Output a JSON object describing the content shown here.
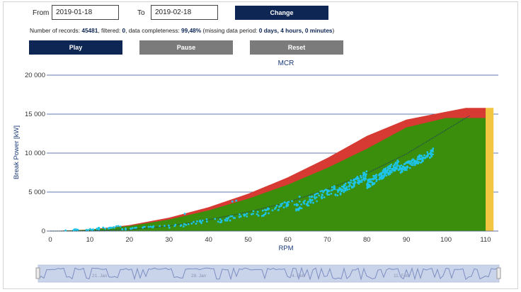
{
  "filter": {
    "from_label": "From",
    "from_value": "2019-01-18",
    "to_label": "To",
    "to_value": "2019-02-18",
    "change_label": "Change"
  },
  "info": {
    "prefix": "Number of records: ",
    "records": "45481",
    "filtered_label": ", filtered: ",
    "filtered": "0",
    "completeness_label": ", data completeness: ",
    "completeness": "99,48%",
    "missing_label": " (missing data period: ",
    "missing": "0 days, 4 hours, 0 minutes",
    "suffix": ")"
  },
  "controls": {
    "play_label": "Play",
    "pause_label": "Pause",
    "reset_label": "Reset"
  },
  "colors": {
    "button_dark": "#0d2653",
    "button_grey": "#7b7b7b",
    "operating_zone": "#3a8e0b",
    "overload_zone": "#d63a32",
    "overspeed_zone": "#f2c640",
    "scatter": "#1ec3e8",
    "gridline": "#2f4f91"
  },
  "navigator": {
    "labels": [
      "21. Jan",
      "28. Jan",
      "4. Feb",
      "11. Feb"
    ]
  },
  "chart_data": {
    "type": "scatter",
    "title": "MCR",
    "xlabel": "RPM",
    "ylabel": "Break Power [kW]",
    "xlim": [
      0,
      112
    ],
    "ylim": [
      0,
      20000
    ],
    "x_ticks": [
      0,
      10,
      20,
      30,
      40,
      50,
      60,
      70,
      80,
      90,
      100,
      110
    ],
    "y_ticks": [
      0,
      5000,
      10000,
      15000,
      20000
    ],
    "y_tick_labels": [
      "0",
      "5 000",
      "10 000",
      "15 000",
      "20 000"
    ],
    "grid": "horizontal",
    "zones": {
      "operating_limit": [
        [
          0,
          0
        ],
        [
          10,
          160
        ],
        [
          20,
          650
        ],
        [
          30,
          1480
        ],
        [
          40,
          2650
        ],
        [
          50,
          4150
        ],
        [
          60,
          5950
        ],
        [
          70,
          8100
        ],
        [
          80,
          10550
        ],
        [
          90,
          13300
        ],
        [
          100,
          14500
        ],
        [
          110,
          14500
        ]
      ],
      "overload_limit": [
        [
          0,
          0
        ],
        [
          10,
          190
        ],
        [
          20,
          760
        ],
        [
          30,
          1720
        ],
        [
          40,
          3050
        ],
        [
          50,
          4780
        ],
        [
          60,
          6880
        ],
        [
          70,
          9370
        ],
        [
          80,
          12200
        ],
        [
          90,
          14300
        ],
        [
          105,
          15800
        ],
        [
          110,
          15800
        ]
      ],
      "overspeed_band": [
        110,
        112
      ]
    },
    "propeller_curve": [
      [
        0,
        0
      ],
      [
        10,
        20
      ],
      [
        20,
        180
      ],
      [
        30,
        650
      ],
      [
        40,
        1450
      ],
      [
        50,
        2450
      ],
      [
        60,
        3700
      ],
      [
        70,
        5350
      ],
      [
        80,
        7400
      ],
      [
        90,
        9900
      ],
      [
        106,
        14800
      ]
    ],
    "scatter_clusters": [
      {
        "x": [
          3,
          8
        ],
        "y": [
          0,
          250
        ],
        "n": 8
      },
      {
        "x": [
          8,
          18
        ],
        "y": [
          100,
          600
        ],
        "n": 28
      },
      {
        "x": [
          18,
          30
        ],
        "y": [
          200,
          700
        ],
        "n": 20
      },
      {
        "x": [
          30,
          42
        ],
        "y": [
          500,
          1500
        ],
        "n": 22
      },
      {
        "x": [
          42,
          52
        ],
        "y": [
          1200,
          2400
        ],
        "n": 30
      },
      {
        "x": [
          52,
          62
        ],
        "y": [
          2000,
          3800
        ],
        "n": 40
      },
      {
        "x": [
          62,
          72
        ],
        "y": [
          3000,
          5500
        ],
        "n": 70
      },
      {
        "x": [
          72,
          80
        ],
        "y": [
          4800,
          7200
        ],
        "n": 110
      },
      {
        "x": [
          80,
          88
        ],
        "y": [
          6000,
          8600
        ],
        "n": 150
      },
      {
        "x": [
          88,
          97
        ],
        "y": [
          7800,
          10200
        ],
        "n": 120
      }
    ],
    "outliers": [
      [
        34,
        2200
      ],
      [
        46,
        3800
      ],
      [
        47,
        3900
      ],
      [
        55,
        2900
      ],
      [
        63,
        4400
      ]
    ]
  }
}
